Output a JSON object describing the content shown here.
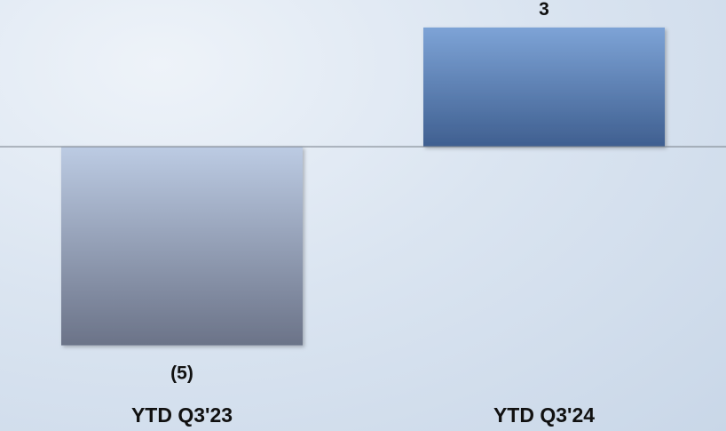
{
  "chart_data": {
    "type": "bar",
    "title": "",
    "xlabel": "",
    "ylabel": "",
    "categories": [
      "YTD Q3'23",
      "YTD Q3'24"
    ],
    "values": [
      -5,
      3
    ],
    "value_labels": [
      "(5)",
      "3"
    ],
    "ylim": [
      -5.3,
      3.2
    ],
    "grid": false,
    "legend": "none",
    "colors": {
      "negative_top": "#bccbe3",
      "negative_bottom": "#6b7388",
      "positive_top": "#7da3d6",
      "positive_bottom": "#3f5f90",
      "baseline": "#7f8790"
    }
  }
}
